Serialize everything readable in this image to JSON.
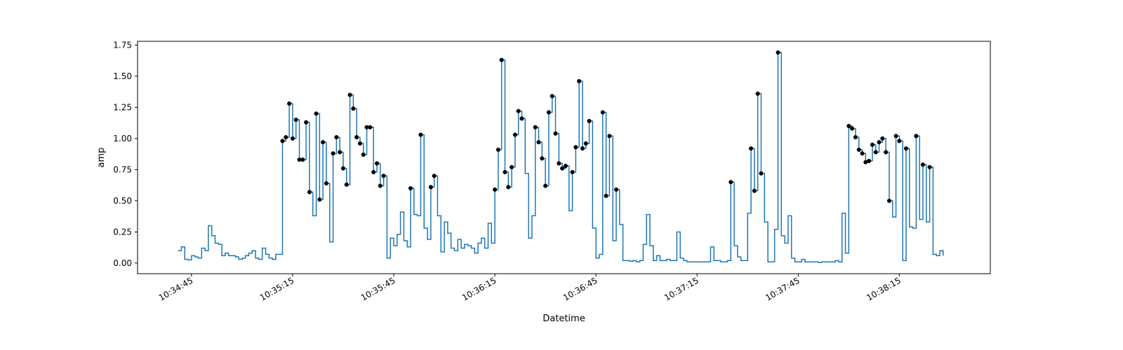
{
  "chart_data": {
    "type": "line",
    "step": "post",
    "xlabel": "Datetime",
    "ylabel": "amp",
    "ylim": [
      -0.085,
      1.78
    ],
    "xlim": [
      "10:34:29",
      "10:38:42"
    ],
    "x_ticks": [
      "10:34:45",
      "10:35:15",
      "10:35:45",
      "10:36:15",
      "10:36:45",
      "10:37:15",
      "10:37:45",
      "10:38:15"
    ],
    "y_ticks": [
      "0.00",
      "0.25",
      "0.50",
      "0.75",
      "1.00",
      "1.25",
      "1.50",
      "1.75"
    ],
    "colors": {
      "line": "#1f77b4",
      "markers": "#000000"
    },
    "series": [
      {
        "t_start": "10:34:41",
        "interval_seconds": 1,
        "values": [
          0.1,
          0.13,
          0.03,
          0.025,
          0.06,
          0.05,
          0.04,
          0.12,
          0.1,
          0.3,
          0.22,
          0.16,
          0.15,
          0.06,
          0.08,
          0.06,
          0.06,
          0.05,
          0.03,
          0.04,
          0.06,
          0.08,
          0.1,
          0.04,
          0.03,
          0.12,
          0.07,
          0.04,
          0.03,
          0.07,
          0.07,
          0.98,
          1.01,
          1.28,
          1.0,
          1.15,
          0.83,
          0.83,
          1.13,
          0.57,
          0.38,
          1.2,
          0.51,
          0.97,
          0.64,
          0.17,
          0.88,
          1.01,
          0.89,
          0.76,
          0.63,
          1.35,
          1.24,
          1.01,
          0.96,
          0.87,
          1.09,
          1.09,
          0.73,
          0.8,
          0.62,
          0.7,
          0.04,
          0.2,
          0.14,
          0.23,
          0.41,
          0.18,
          0.13,
          0.6,
          0.39,
          0.38,
          1.03,
          0.28,
          0.19,
          0.61,
          0.7,
          0.38,
          0.09,
          0.33,
          0.24,
          0.12,
          0.1,
          0.19,
          0.12,
          0.15,
          0.14,
          0.12,
          0.08,
          0.16,
          0.2,
          0.12,
          0.32,
          0.16,
          0.59,
          0.91,
          1.63,
          0.73,
          0.61,
          0.77,
          1.03,
          1.22,
          1.16,
          0.72,
          0.2,
          0.38,
          1.09,
          0.97,
          0.84,
          0.62,
          1.21,
          1.34,
          1.04,
          0.8,
          0.76,
          0.78,
          0.42,
          0.73,
          0.93,
          1.46,
          0.92,
          0.96,
          1.14,
          0.28,
          0.04,
          0.07,
          1.21,
          0.54,
          1.02,
          0.18,
          0.59,
          0.31,
          0.02,
          0.02,
          0.015,
          0.02,
          0.01,
          0.02,
          0.15,
          0.39,
          0.14,
          0.02,
          0.06,
          0.02,
          0.02,
          0.03,
          0.02,
          0.02,
          0.25,
          0.04,
          0.02,
          0.01,
          0.01,
          0.01,
          0.01,
          0.01,
          0.01,
          0.01,
          0.13,
          0.02,
          0.02,
          0.01,
          0.01,
          0.02,
          0.65,
          0.14,
          0.05,
          0.02,
          0.02,
          0.4,
          0.92,
          0.58,
          1.36,
          0.72,
          0.33,
          0.01,
          0.01,
          0.27,
          1.69,
          0.22,
          0.16,
          0.38,
          0.04,
          0.01,
          0.01,
          0.03,
          0.01,
          0.01,
          0.01,
          0.01,
          0.005,
          0.01,
          0.01,
          0.01,
          0.01,
          0.02,
          0.01,
          0.4,
          0.08,
          1.1,
          1.08,
          1.01,
          0.91,
          0.88,
          0.81,
          0.82,
          0.95,
          0.89,
          0.97,
          1.0,
          0.89,
          0.5,
          0.37,
          1.02,
          0.98,
          0.02,
          0.92,
          0.29,
          0.28,
          1.02,
          0.35,
          0.79,
          0.33,
          0.77,
          0.07,
          0.06,
          0.1,
          0.06
        ],
        "marker_values": [
          0.98,
          1.01,
          1.28,
          1.0,
          1.15,
          0.83,
          0.83,
          1.13,
          0.57,
          1.2,
          0.51,
          0.97,
          0.64,
          0.88,
          1.01,
          0.89,
          0.76,
          0.63,
          1.35,
          1.24,
          1.01,
          0.96,
          0.87,
          1.09,
          1.09,
          0.73,
          0.8,
          0.62,
          0.7,
          0.6,
          1.03,
          0.61,
          0.7,
          0.59,
          0.91,
          1.63,
          0.73,
          0.61,
          0.77,
          1.03,
          1.22,
          1.16,
          1.09,
          0.97,
          0.84,
          0.62,
          1.21,
          1.34,
          1.04,
          0.8,
          0.76,
          0.78,
          0.73,
          0.93,
          1.46,
          0.92,
          0.96,
          1.14,
          1.21,
          0.54,
          1.02,
          0.59,
          0.65,
          0.92,
          0.58,
          1.36,
          0.72,
          1.69,
          1.1,
          1.08,
          1.01,
          0.91,
          0.88,
          0.81,
          0.82,
          0.95,
          0.89,
          0.97,
          1.0,
          0.89,
          0.5,
          1.02,
          0.98,
          0.92,
          1.02,
          0.79,
          0.77
        ]
      }
    ]
  }
}
